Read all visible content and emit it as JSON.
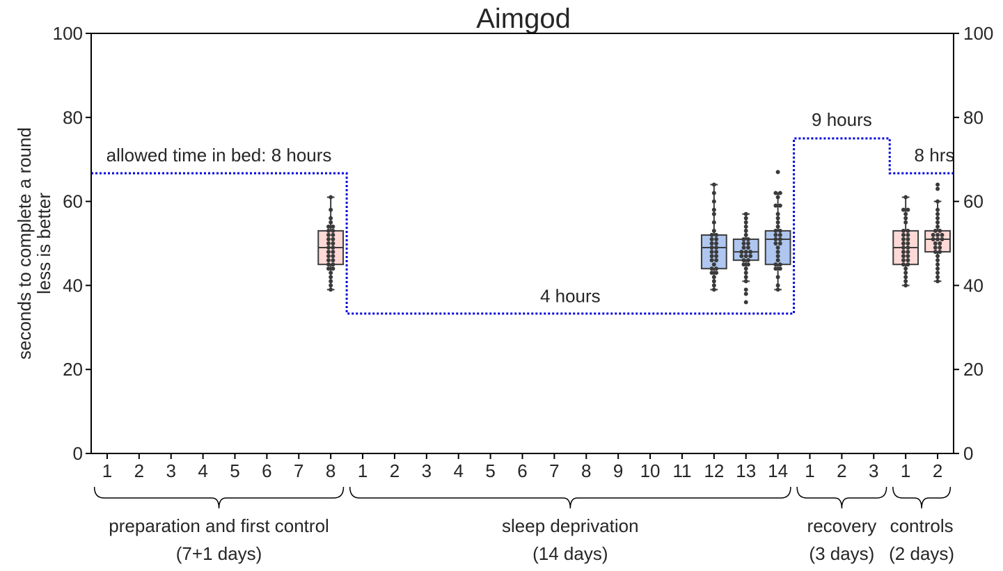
{
  "chart_data": {
    "type": "box",
    "title": "Aimgod",
    "ylabel_line1": "seconds to complete a round",
    "ylabel_line2": "less is better",
    "ylim": [
      0,
      100
    ],
    "yticks": [
      "0",
      "20",
      "40",
      "60",
      "80",
      "100"
    ],
    "yticks_right": [
      "0",
      "20",
      "40",
      "60",
      "80",
      "100"
    ],
    "x_tick_labels": [
      "1",
      "2",
      "3",
      "4",
      "5",
      "6",
      "7",
      "8",
      "1",
      "2",
      "3",
      "4",
      "5",
      "6",
      "7",
      "8",
      "9",
      "10",
      "11",
      "12",
      "13",
      "14",
      "1",
      "2",
      "3",
      "1",
      "2"
    ],
    "phases": [
      {
        "name": "preparation and first control",
        "duration": "(7+1 days)",
        "start": 0,
        "end": 7
      },
      {
        "name": "sleep deprivation",
        "duration": "(14 days)",
        "start": 8,
        "end": 21
      },
      {
        "name": "recovery",
        "duration": "(3 days)",
        "start": 22,
        "end": 24
      },
      {
        "name": "controls",
        "duration": "(2 days)",
        "start": 25,
        "end": 26
      }
    ],
    "bed_time": {
      "color": "#0000dd",
      "segments": [
        {
          "from": -0.5,
          "to": 7.5,
          "value": 66.7
        },
        {
          "from": 7.5,
          "to": 21.5,
          "value": 33.3
        },
        {
          "from": 21.5,
          "to": 24.5,
          "value": 75
        },
        {
          "from": 24.5,
          "to": 26.5,
          "value": 66.7
        }
      ],
      "labels": [
        {
          "text": "allowed time in bed: 8 hours",
          "x": 3.5,
          "y": 69.5
        },
        {
          "text": "4 hours",
          "x": 14.5,
          "y": 36
        },
        {
          "text": "9 hours",
          "x": 23.0,
          "y": 78
        },
        {
          "text": "8 hrs",
          "x": 25.9,
          "y": 69.5
        }
      ]
    },
    "colors": {
      "control": "#ffd9d6",
      "deprivation": "#aec6f0",
      "edge": "#3c3c3c",
      "point": "#3a3a3a"
    },
    "boxes": [
      {
        "day_index": 7,
        "group": "control",
        "q1": 45,
        "median": 49,
        "q3": 53,
        "whisker_low": 39,
        "whisker_high": 61,
        "points": [
          39,
          40,
          41,
          42,
          43,
          44,
          44,
          45,
          45,
          46,
          46,
          47,
          47,
          48,
          48,
          49,
          49,
          50,
          50,
          51,
          51,
          52,
          52,
          53,
          53,
          54,
          54,
          55,
          56,
          58,
          61
        ]
      },
      {
        "day_index": 19,
        "group": "deprivation",
        "q1": 44,
        "median": 49,
        "q3": 52,
        "whisker_low": 39,
        "whisker_high": 64,
        "points": [
          39,
          40,
          41,
          42,
          43,
          43,
          44,
          44,
          45,
          46,
          46,
          47,
          47,
          48,
          48,
          49,
          49,
          50,
          50,
          51,
          51,
          52,
          52,
          53,
          55,
          57,
          58,
          60,
          62,
          64
        ]
      },
      {
        "day_index": 20,
        "group": "deprivation",
        "q1": 46,
        "median": 48,
        "q3": 51,
        "whisker_low": 41,
        "whisker_high": 57,
        "points": [
          36,
          38,
          39,
          41,
          42,
          43,
          44,
          45,
          45,
          46,
          46,
          47,
          47,
          47,
          48,
          48,
          48,
          49,
          49,
          50,
          50,
          51,
          51,
          52,
          53,
          54,
          55,
          56,
          57
        ]
      },
      {
        "day_index": 21,
        "group": "deprivation",
        "q1": 45,
        "median": 51,
        "q3": 53,
        "whisker_low": 39,
        "whisker_high": 62,
        "points": [
          39,
          40,
          42,
          44,
          44,
          45,
          45,
          46,
          47,
          48,
          49,
          50,
          50,
          51,
          51,
          52,
          52,
          53,
          53,
          54,
          55,
          56,
          57,
          59,
          59,
          61,
          62,
          62,
          67
        ]
      },
      {
        "day_index": 25,
        "group": "control",
        "q1": 45,
        "median": 49,
        "q3": 53,
        "whisker_low": 40,
        "whisker_high": 61,
        "points": [
          40,
          41,
          42,
          43,
          44,
          45,
          45,
          46,
          46,
          47,
          47,
          48,
          48,
          49,
          49,
          50,
          50,
          51,
          51,
          52,
          52,
          53,
          53,
          55,
          56,
          57,
          58,
          58,
          61
        ]
      },
      {
        "day_index": 26,
        "group": "control",
        "q1": 48,
        "median": 51,
        "q3": 53,
        "whisker_low": 41,
        "whisker_high": 60,
        "points": [
          41,
          42,
          43,
          44,
          45,
          46,
          47,
          48,
          48,
          49,
          49,
          50,
          50,
          51,
          51,
          51,
          52,
          52,
          52,
          53,
          53,
          54,
          55,
          56,
          57,
          58,
          60,
          63,
          64
        ]
      }
    ]
  }
}
